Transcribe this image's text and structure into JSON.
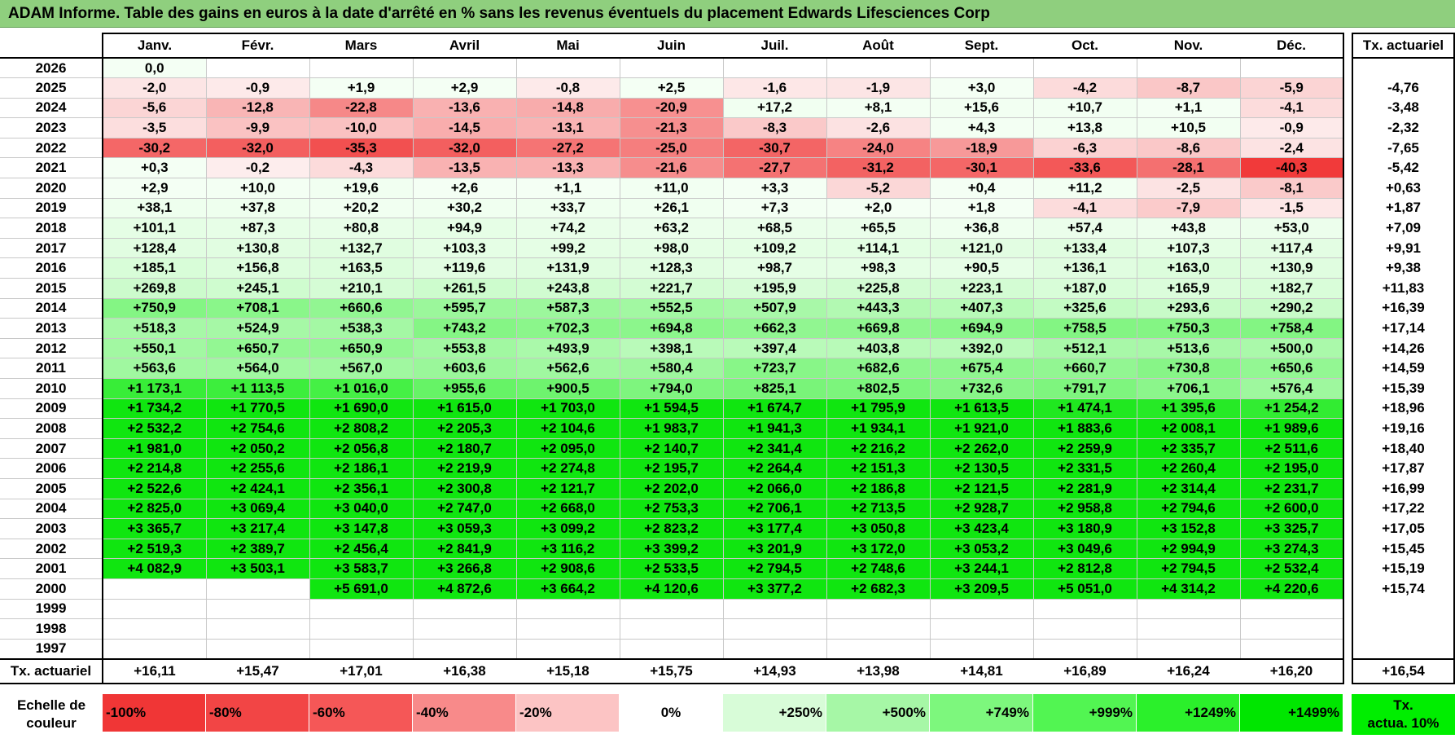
{
  "title": "ADAM Informe. Table des gains en euros à la date d'arrêté en % sans les revenus éventuels du placement Edwards Lifesciences Corp",
  "chart_data": {
    "type": "table",
    "title": "ADAM Informe. Table des gains en euros à la date d'arrêté en % sans les revenus éventuels du placement Edwards Lifesciences Corp",
    "months": [
      "Janv.",
      "Févr.",
      "Mars",
      "Avril",
      "Mai",
      "Juin",
      "Juil.",
      "Août",
      "Sept.",
      "Oct.",
      "Nov.",
      "Déc."
    ],
    "annual_header": "Tx. actuariel",
    "rows": [
      {
        "year": "2026",
        "values": [
          "0,0",
          "",
          "",
          "",
          "",
          "",
          "",
          "",
          "",
          "",
          "",
          ""
        ],
        "annual": ""
      },
      {
        "year": "2025",
        "values": [
          "-2,0",
          "-0,9",
          "+1,9",
          "+2,9",
          "-0,8",
          "+2,5",
          "-1,6",
          "-1,9",
          "+3,0",
          "-4,2",
          "-8,7",
          "-5,9"
        ],
        "annual": "-4,76"
      },
      {
        "year": "2024",
        "values": [
          "-5,6",
          "-12,8",
          "-22,8",
          "-13,6",
          "-14,8",
          "-20,9",
          "+17,2",
          "+8,1",
          "+15,6",
          "+10,7",
          "+1,1",
          "-4,1"
        ],
        "annual": "-3,48"
      },
      {
        "year": "2023",
        "values": [
          "-3,5",
          "-9,9",
          "-10,0",
          "-14,5",
          "-13,1",
          "-21,3",
          "-8,3",
          "-2,6",
          "+4,3",
          "+13,8",
          "+10,5",
          "-0,9"
        ],
        "annual": "-2,32"
      },
      {
        "year": "2022",
        "values": [
          "-30,2",
          "-32,0",
          "-35,3",
          "-32,0",
          "-27,2",
          "-25,0",
          "-30,7",
          "-24,0",
          "-18,9",
          "-6,3",
          "-8,6",
          "-2,4"
        ],
        "annual": "-7,65"
      },
      {
        "year": "2021",
        "values": [
          "+0,3",
          "-0,2",
          "-4,3",
          "-13,5",
          "-13,3",
          "-21,6",
          "-27,7",
          "-31,2",
          "-30,1",
          "-33,6",
          "-28,1",
          "-40,3"
        ],
        "annual": "-5,42"
      },
      {
        "year": "2020",
        "values": [
          "+2,9",
          "+10,0",
          "+19,6",
          "+2,6",
          "+1,1",
          "+11,0",
          "+3,3",
          "-5,2",
          "+0,4",
          "+11,2",
          "-2,5",
          "-8,1"
        ],
        "annual": "+0,63"
      },
      {
        "year": "2019",
        "values": [
          "+38,1",
          "+37,8",
          "+20,2",
          "+30,2",
          "+33,7",
          "+26,1",
          "+7,3",
          "+2,0",
          "+1,8",
          "-4,1",
          "-7,9",
          "-1,5"
        ],
        "annual": "+1,87"
      },
      {
        "year": "2018",
        "values": [
          "+101,1",
          "+87,3",
          "+80,8",
          "+94,9",
          "+74,2",
          "+63,2",
          "+68,5",
          "+65,5",
          "+36,8",
          "+57,4",
          "+43,8",
          "+53,0"
        ],
        "annual": "+7,09"
      },
      {
        "year": "2017",
        "values": [
          "+128,4",
          "+130,8",
          "+132,7",
          "+103,3",
          "+99,2",
          "+98,0",
          "+109,2",
          "+114,1",
          "+121,0",
          "+133,4",
          "+107,3",
          "+117,4"
        ],
        "annual": "+9,91"
      },
      {
        "year": "2016",
        "values": [
          "+185,1",
          "+156,8",
          "+163,5",
          "+119,6",
          "+131,9",
          "+128,3",
          "+98,7",
          "+98,3",
          "+90,5",
          "+136,1",
          "+163,0",
          "+130,9"
        ],
        "annual": "+9,38"
      },
      {
        "year": "2015",
        "values": [
          "+269,8",
          "+245,1",
          "+210,1",
          "+261,5",
          "+243,8",
          "+221,7",
          "+195,9",
          "+225,8",
          "+223,1",
          "+187,0",
          "+165,9",
          "+182,7"
        ],
        "annual": "+11,83"
      },
      {
        "year": "2014",
        "values": [
          "+750,9",
          "+708,1",
          "+660,6",
          "+595,7",
          "+587,3",
          "+552,5",
          "+507,9",
          "+443,3",
          "+407,3",
          "+325,6",
          "+293,6",
          "+290,2"
        ],
        "annual": "+16,39"
      },
      {
        "year": "2013",
        "values": [
          "+518,3",
          "+524,9",
          "+538,3",
          "+743,2",
          "+702,3",
          "+694,8",
          "+662,3",
          "+669,8",
          "+694,9",
          "+758,5",
          "+750,3",
          "+758,4"
        ],
        "annual": "+17,14"
      },
      {
        "year": "2012",
        "values": [
          "+550,1",
          "+650,7",
          "+650,9",
          "+553,8",
          "+493,9",
          "+398,1",
          "+397,4",
          "+403,8",
          "+392,0",
          "+512,1",
          "+513,6",
          "+500,0"
        ],
        "annual": "+14,26"
      },
      {
        "year": "2011",
        "values": [
          "+563,6",
          "+564,0",
          "+567,0",
          "+603,6",
          "+562,6",
          "+580,4",
          "+723,7",
          "+682,6",
          "+675,4",
          "+660,7",
          "+730,8",
          "+650,6"
        ],
        "annual": "+14,59"
      },
      {
        "year": "2010",
        "values": [
          "+1 173,1",
          "+1 113,5",
          "+1 016,0",
          "+955,6",
          "+900,5",
          "+794,0",
          "+825,1",
          "+802,5",
          "+732,6",
          "+791,7",
          "+706,1",
          "+576,4"
        ],
        "annual": "+15,39"
      },
      {
        "year": "2009",
        "values": [
          "+1 734,2",
          "+1 770,5",
          "+1 690,0",
          "+1 615,0",
          "+1 703,0",
          "+1 594,5",
          "+1 674,7",
          "+1 795,9",
          "+1 613,5",
          "+1 474,1",
          "+1 395,6",
          "+1 254,2"
        ],
        "annual": "+18,96"
      },
      {
        "year": "2008",
        "values": [
          "+2 532,2",
          "+2 754,6",
          "+2 808,2",
          "+2 205,3",
          "+2 104,6",
          "+1 983,7",
          "+1 941,3",
          "+1 934,1",
          "+1 921,0",
          "+1 883,6",
          "+2 008,1",
          "+1 989,6"
        ],
        "annual": "+19,16"
      },
      {
        "year": "2007",
        "values": [
          "+1 981,0",
          "+2 050,2",
          "+2 056,8",
          "+2 180,7",
          "+2 095,0",
          "+2 140,7",
          "+2 341,4",
          "+2 216,2",
          "+2 262,0",
          "+2 259,9",
          "+2 335,7",
          "+2 511,6"
        ],
        "annual": "+18,40"
      },
      {
        "year": "2006",
        "values": [
          "+2 214,8",
          "+2 255,6",
          "+2 186,1",
          "+2 219,9",
          "+2 274,8",
          "+2 195,7",
          "+2 264,4",
          "+2 151,3",
          "+2 130,5",
          "+2 331,5",
          "+2 260,4",
          "+2 195,0"
        ],
        "annual": "+17,87"
      },
      {
        "year": "2005",
        "values": [
          "+2 522,6",
          "+2 424,1",
          "+2 356,1",
          "+2 300,8",
          "+2 121,7",
          "+2 202,0",
          "+2 066,0",
          "+2 186,8",
          "+2 121,5",
          "+2 281,9",
          "+2 314,4",
          "+2 231,7"
        ],
        "annual": "+16,99"
      },
      {
        "year": "2004",
        "values": [
          "+2 825,0",
          "+3 069,4",
          "+3 040,0",
          "+2 747,0",
          "+2 668,0",
          "+2 753,3",
          "+2 706,1",
          "+2 713,5",
          "+2 928,7",
          "+2 958,8",
          "+2 794,6",
          "+2 600,0"
        ],
        "annual": "+17,22"
      },
      {
        "year": "2003",
        "values": [
          "+3 365,7",
          "+3 217,4",
          "+3 147,8",
          "+3 059,3",
          "+3 099,2",
          "+2 823,2",
          "+3 177,4",
          "+3 050,8",
          "+3 423,4",
          "+3 180,9",
          "+3 152,8",
          "+3 325,7"
        ],
        "annual": "+17,05"
      },
      {
        "year": "2002",
        "values": [
          "+2 519,3",
          "+2 389,7",
          "+2 456,4",
          "+2 841,9",
          "+3 116,2",
          "+3 399,2",
          "+3 201,9",
          "+3 172,0",
          "+3 053,2",
          "+3 049,6",
          "+2 994,9",
          "+3 274,3"
        ],
        "annual": "+15,45"
      },
      {
        "year": "2001",
        "values": [
          "+4 082,9",
          "+3 503,1",
          "+3 583,7",
          "+3 266,8",
          "+2 908,6",
          "+2 533,5",
          "+2 794,5",
          "+2 748,6",
          "+3 244,1",
          "+2 812,8",
          "+2 794,5",
          "+2 532,4"
        ],
        "annual": "+15,19"
      },
      {
        "year": "2000",
        "values": [
          "",
          "",
          "+5 691,0",
          "+4 872,6",
          "+3 664,2",
          "+4 120,6",
          "+3 377,2",
          "+2 682,3",
          "+3 209,5",
          "+5 051,0",
          "+4 314,2",
          "+4 220,6"
        ],
        "annual": "+15,74"
      },
      {
        "year": "1999",
        "values": [
          "",
          "",
          "",
          "",
          "",
          "",
          "",
          "",
          "",
          "",
          "",
          ""
        ],
        "annual": ""
      },
      {
        "year": "1998",
        "values": [
          "",
          "",
          "",
          "",
          "",
          "",
          "",
          "",
          "",
          "",
          "",
          ""
        ],
        "annual": ""
      },
      {
        "year": "1997",
        "values": [
          "",
          "",
          "",
          "",
          "",
          "",
          "",
          "",
          "",
          "",
          "",
          ""
        ],
        "annual": ""
      }
    ],
    "annual_row": {
      "label": "Tx. actuariel",
      "values": [
        "+16,11",
        "+15,47",
        "+17,01",
        "+16,38",
        "+15,18",
        "+15,75",
        "+14,93",
        "+13,98",
        "+14,81",
        "+16,89",
        "+16,24",
        "+16,20"
      ],
      "total": "+16,54"
    },
    "legend": {
      "label_line1": "Echelle de",
      "label_line2": "couleur",
      "swatches": [
        {
          "text": "-100%",
          "color": "#f03636",
          "kind": "neg"
        },
        {
          "text": "-80%",
          "color": "#f24545",
          "kind": "neg"
        },
        {
          "text": "-60%",
          "color": "#f55757",
          "kind": "neg"
        },
        {
          "text": "-40%",
          "color": "#f88a8a",
          "kind": "neg"
        },
        {
          "text": "-20%",
          "color": "#fcc4c4",
          "kind": "neg"
        },
        {
          "text": "0%",
          "color": "#ffffff",
          "kind": "zero"
        },
        {
          "text": "+250%",
          "color": "#d8fcd8",
          "kind": "pos"
        },
        {
          "text": "+500%",
          "color": "#a6f7a6",
          "kind": "pos"
        },
        {
          "text": "+749%",
          "color": "#7df77d",
          "kind": "pos"
        },
        {
          "text": "+999%",
          "color": "#52f552",
          "kind": "pos"
        },
        {
          "text": "+1249%",
          "color": "#2bf02b",
          "kind": "pos"
        },
        {
          "text": "+1499%",
          "color": "#00e600",
          "kind": "pos"
        }
      ],
      "target_line1": "Tx.",
      "target_line2": "actua. 10%"
    }
  }
}
